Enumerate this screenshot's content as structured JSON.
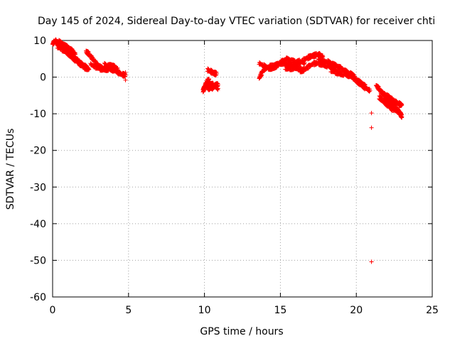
{
  "chart_data": {
    "type": "scatter",
    "title": "Day 145 of 2024, Sidereal Day-to-day VTEC variation (SDTVAR) for receiver chti",
    "xlabel": "GPS time / hours",
    "ylabel": "SDTVAR / TECUs",
    "xlim": [
      0,
      25
    ],
    "ylim": [
      -60,
      10
    ],
    "xticks": [
      0,
      5,
      10,
      15,
      20,
      25
    ],
    "yticks": [
      10,
      0,
      -10,
      -20,
      -30,
      -40,
      -50,
      -60
    ],
    "grid": true,
    "legend": "none",
    "marker": "+",
    "series": [
      {
        "name": "SDTVAR",
        "color": "#ff0000",
        "tracks": [
          [
            [
              0.0,
              9.0
            ],
            [
              0.1,
              9.6
            ],
            [
              0.2,
              9.9
            ],
            [
              0.3,
              9.4
            ],
            [
              0.5,
              9.1
            ],
            [
              0.7,
              8.4
            ],
            [
              0.9,
              7.6
            ],
            [
              1.1,
              6.8
            ],
            [
              1.3,
              5.8
            ],
            [
              1.5,
              5.0
            ],
            [
              1.7,
              4.4
            ],
            [
              1.9,
              3.7
            ],
            [
              2.1,
              3.0
            ],
            [
              2.3,
              2.6
            ]
          ],
          [
            [
              0.3,
              8.3
            ],
            [
              0.6,
              7.6
            ],
            [
              0.9,
              6.9
            ],
            [
              1.2,
              5.7
            ],
            [
              1.5,
              4.6
            ],
            [
              1.8,
              3.5
            ],
            [
              2.1,
              2.6
            ],
            [
              2.4,
              2.1
            ]
          ],
          [
            [
              0.4,
              9.7
            ],
            [
              0.7,
              8.9
            ],
            [
              1.0,
              8.1
            ],
            [
              1.3,
              7.2
            ],
            [
              1.5,
              6.3
            ]
          ],
          [
            [
              2.2,
              7.0
            ],
            [
              2.4,
              6.3
            ],
            [
              2.6,
              5.2
            ],
            [
              2.8,
              4.1
            ],
            [
              3.0,
              3.0
            ],
            [
              3.3,
              2.4
            ],
            [
              3.6,
              2.1
            ],
            [
              3.9,
              2.3
            ],
            [
              4.1,
              2.6
            ]
          ],
          [
            [
              2.5,
              3.5
            ],
            [
              2.8,
              2.8
            ],
            [
              3.1,
              2.3
            ],
            [
              3.4,
              2.1
            ],
            [
              3.7,
              2.2
            ],
            [
              4.0,
              1.9
            ],
            [
              4.3,
              1.3
            ],
            [
              4.6,
              0.7
            ],
            [
              4.8,
              0.5
            ]
          ],
          [
            [
              3.4,
              3.4
            ],
            [
              3.6,
              3.0
            ],
            [
              3.9,
              3.2
            ],
            [
              4.1,
              2.7
            ],
            [
              4.3,
              2.0
            ]
          ],
          [
            [
              9.9,
              -3.8
            ],
            [
              10.0,
              -2.8
            ],
            [
              10.1,
              -1.8
            ],
            [
              10.2,
              -1.0
            ],
            [
              10.3,
              -0.5
            ]
          ],
          [
            [
              10.1,
              -2.4
            ],
            [
              10.3,
              -3.2
            ],
            [
              10.5,
              -3.0
            ],
            [
              10.7,
              -2.3
            ],
            [
              10.9,
              -2.0
            ]
          ],
          [
            [
              10.2,
              2.0
            ],
            [
              10.4,
              1.6
            ],
            [
              10.6,
              1.1
            ],
            [
              10.8,
              0.9
            ]
          ],
          [
            [
              10.2,
              -1.5
            ],
            [
              10.4,
              -1.9
            ],
            [
              10.6,
              -2.1
            ],
            [
              10.9,
              -3.1
            ]
          ],
          [
            [
              13.6,
              -0.3
            ],
            [
              13.8,
              1.3
            ],
            [
              14.0,
              2.4
            ],
            [
              14.3,
              2.9
            ],
            [
              14.6,
              3.2
            ],
            [
              14.9,
              3.5
            ],
            [
              15.2,
              3.9
            ],
            [
              15.5,
              3.6
            ],
            [
              15.8,
              3.0
            ],
            [
              16.1,
              2.4
            ],
            [
              16.4,
              2.1
            ]
          ],
          [
            [
              13.6,
              3.8
            ],
            [
              13.9,
              3.1
            ],
            [
              14.2,
              2.5
            ],
            [
              14.5,
              2.4
            ],
            [
              14.8,
              3.2
            ],
            [
              15.1,
              4.3
            ],
            [
              15.4,
              4.9
            ],
            [
              15.7,
              4.5
            ],
            [
              16.0,
              4.1
            ],
            [
              16.3,
              4.3
            ],
            [
              16.6,
              3.9
            ]
          ],
          [
            [
              15.3,
              2.6
            ],
            [
              15.6,
              2.3
            ],
            [
              15.9,
              2.5
            ],
            [
              16.2,
              3.5
            ],
            [
              16.5,
              4.6
            ],
            [
              16.8,
              5.3
            ],
            [
              17.1,
              5.8
            ],
            [
              17.4,
              6.1
            ],
            [
              17.6,
              6.1
            ],
            [
              17.8,
              5.6
            ]
          ],
          [
            [
              16.3,
              1.6
            ],
            [
              16.6,
              2.1
            ],
            [
              16.9,
              3.0
            ],
            [
              17.2,
              3.7
            ],
            [
              17.5,
              3.8
            ],
            [
              17.8,
              3.4
            ],
            [
              18.1,
              3.1
            ],
            [
              18.4,
              2.6
            ],
            [
              18.6,
              2.0
            ]
          ],
          [
            [
              17.5,
              4.9
            ],
            [
              17.8,
              4.4
            ],
            [
              18.1,
              4.2
            ],
            [
              18.4,
              3.6
            ],
            [
              18.7,
              3.0
            ],
            [
              19.0,
              2.4
            ],
            [
              19.3,
              1.6
            ],
            [
              19.6,
              0.9
            ],
            [
              19.9,
              0.2
            ]
          ],
          [
            [
              18.3,
              1.9
            ],
            [
              18.6,
              1.4
            ],
            [
              18.9,
              1.0
            ],
            [
              19.2,
              0.8
            ],
            [
              19.5,
              0.4
            ],
            [
              19.8,
              -0.2
            ],
            [
              20.1,
              -1.0
            ],
            [
              20.4,
              -1.9
            ],
            [
              20.6,
              -2.6
            ]
          ],
          [
            [
              20.0,
              -1.0
            ],
            [
              20.3,
              -2.0
            ],
            [
              20.6,
              -3.0
            ],
            [
              20.9,
              -3.7
            ]
          ],
          [
            [
              21.3,
              -2.2
            ],
            [
              21.5,
              -3.2
            ],
            [
              21.7,
              -4.2
            ],
            [
              21.9,
              -5.3
            ],
            [
              22.1,
              -6.3
            ],
            [
              22.3,
              -7.3
            ],
            [
              22.5,
              -8.1
            ],
            [
              22.7,
              -8.9
            ],
            [
              22.9,
              -10.0
            ],
            [
              23.0,
              -10.8
            ]
          ],
          [
            [
              21.6,
              -4.0
            ],
            [
              21.8,
              -4.7
            ],
            [
              22.0,
              -5.1
            ],
            [
              22.2,
              -5.6
            ],
            [
              22.4,
              -6.3
            ],
            [
              22.6,
              -6.8
            ],
            [
              22.8,
              -7.3
            ],
            [
              23.0,
              -7.6
            ]
          ],
          [
            [
              21.5,
              -5.5
            ],
            [
              21.8,
              -6.6
            ],
            [
              22.1,
              -7.8
            ],
            [
              22.4,
              -8.9
            ],
            [
              22.7,
              -9.3
            ],
            [
              22.9,
              -9.6
            ]
          ]
        ],
        "outliers": [
          [
            4.8,
            1.3
          ],
          [
            4.8,
            -0.8
          ],
          [
            21.0,
            -9.8
          ],
          [
            21.0,
            -13.8
          ],
          [
            21.0,
            -50.4
          ]
        ]
      }
    ]
  }
}
